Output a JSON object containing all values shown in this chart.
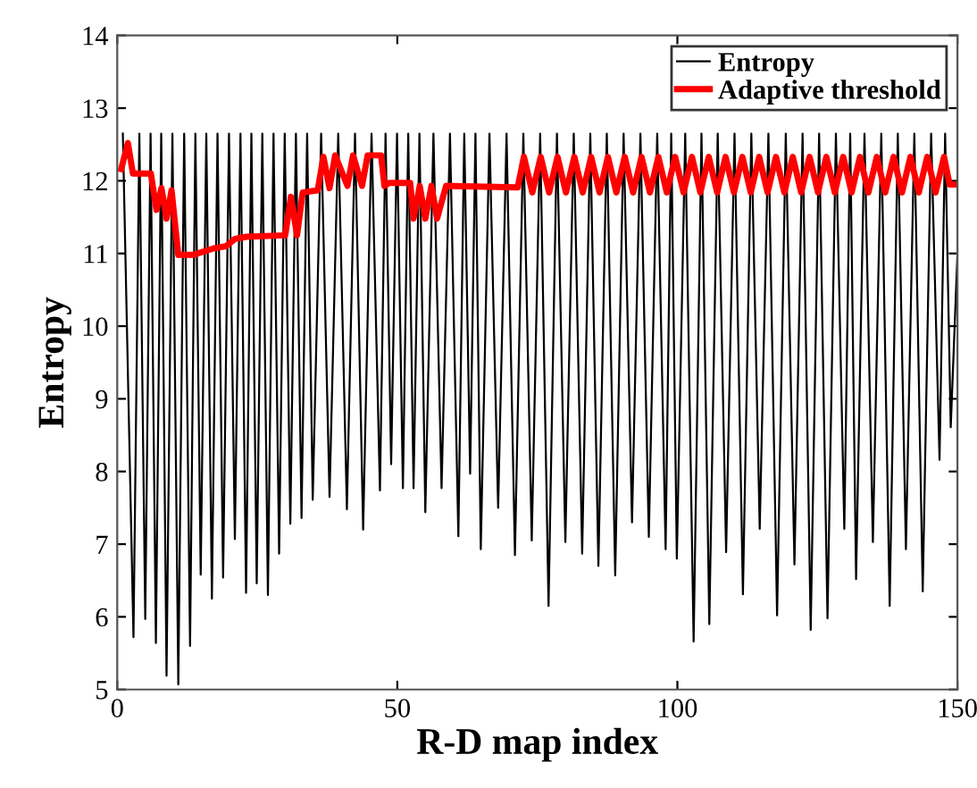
{
  "chart_data": {
    "type": "line",
    "xlabel": "R-D map index",
    "ylabel": "Entropy",
    "xlim": [
      0,
      150
    ],
    "xticks": [
      0,
      50,
      100,
      150
    ],
    "ylim": [
      5,
      14
    ],
    "yticks": [
      5,
      6,
      7,
      8,
      9,
      10,
      11,
      12,
      13,
      14
    ],
    "grid": false,
    "legend": "top right",
    "marker": "none",
    "line_style": "solid",
    "series": [
      {
        "name": "Entropy",
        "color": "#000000",
        "x": [
          1.0,
          2.9,
          3.95,
          5.0,
          5.95,
          6.9,
          7.85,
          8.8,
          9.85,
          10.9,
          11.95,
          13.0,
          13.95,
          14.9,
          15.9,
          16.9,
          17.9,
          18.9,
          19.95,
          21.0,
          22.0,
          23.0,
          23.95,
          24.9,
          25.9,
          26.9,
          27.9,
          28.9,
          29.9,
          30.9,
          31.9,
          32.9,
          33.9,
          34.9,
          36.4,
          37.9,
          39.45,
          41.0,
          42.45,
          43.9,
          45.4,
          46.9,
          47.9,
          48.9,
          49.95,
          51.0,
          51.95,
          52.9,
          53.95,
          55.0,
          56.45,
          57.9,
          59.4,
          60.9,
          61.95,
          63.0,
          63.95,
          64.9,
          66.45,
          68.0,
          69.5,
          71.0,
          72.5,
          74.0,
          75.5,
          77.0,
          78.5,
          80.0,
          81.5,
          83.0,
          84.45,
          85.9,
          87.4,
          88.9,
          90.4,
          91.9,
          93.4,
          94.9,
          96.4,
          97.9,
          98.9,
          99.9,
          101.4,
          102.9,
          104.3,
          105.7,
          107.2,
          108.7,
          110.2,
          111.7,
          113.2,
          114.7,
          116.25,
          117.8,
          119.35,
          120.9,
          122.35,
          123.8,
          125.3,
          126.8,
          128.3,
          129.8,
          130.85,
          131.9,
          133.4,
          134.9,
          136.4,
          137.9,
          139.35,
          140.8,
          142.3,
          143.8,
          145.3,
          146.8,
          147.8,
          148.8,
          150
        ],
        "values": [
          12.65,
          5.72,
          12.65,
          5.97,
          12.65,
          5.64,
          12.65,
          5.19,
          12.65,
          5.07,
          12.65,
          5.6,
          12.65,
          6.58,
          12.65,
          6.25,
          12.65,
          6.54,
          12.65,
          7.07,
          12.65,
          6.33,
          12.65,
          6.46,
          12.65,
          6.3,
          12.65,
          6.87,
          12.65,
          7.28,
          12.65,
          7.36,
          12.65,
          7.61,
          12.65,
          7.65,
          12.65,
          7.48,
          12.65,
          7.2,
          12.65,
          7.74,
          12.65,
          8.1,
          12.65,
          7.77,
          12.65,
          7.77,
          12.65,
          7.44,
          12.65,
          7.77,
          12.65,
          7.11,
          12.65,
          7.97,
          12.65,
          6.93,
          12.65,
          7.5,
          12.65,
          6.85,
          12.65,
          7.05,
          12.65,
          6.15,
          12.65,
          7.03,
          12.65,
          6.87,
          12.65,
          6.7,
          12.65,
          6.57,
          12.65,
          7.3,
          12.65,
          7.1,
          12.65,
          6.93,
          12.65,
          6.8,
          12.65,
          5.66,
          12.65,
          5.9,
          12.65,
          6.89,
          12.65,
          6.31,
          12.65,
          7.21,
          12.65,
          6.02,
          12.65,
          6.72,
          12.65,
          5.82,
          12.65,
          5.98,
          12.65,
          7.21,
          12.65,
          6.52,
          12.65,
          7.03,
          12.65,
          6.15,
          12.65,
          6.93,
          12.65,
          6.35,
          12.65,
          8.16,
          12.65,
          8.61,
          11.0
        ]
      },
      {
        "name": "Adaptive threshold",
        "color": "#ff0000",
        "x": [
          0.7,
          1.9,
          2.8,
          6.0,
          7.0,
          7.9,
          8.8,
          9.7,
          10.9,
          13.5,
          17.2,
          19.4,
          21.0,
          23.1,
          30.0,
          31.0,
          32.1,
          33.1,
          35.8,
          36.8,
          37.9,
          38.9,
          41.1,
          42.1,
          43.7,
          44.7,
          47.1,
          47.7,
          48.5,
          51.1,
          52.3,
          52.9,
          54.0,
          55.0,
          56.1,
          57.1,
          58.7,
          71.5,
          72.6,
          74.1,
          75.6,
          77.1,
          78.6,
          80.1,
          81.6,
          83.1,
          84.6,
          86.1,
          87.6,
          89.1,
          90.6,
          92.1,
          93.6,
          95.1,
          96.6,
          98.1,
          99.6,
          101.1,
          102.6,
          104.1,
          105.6,
          107.1,
          108.6,
          110.1,
          111.6,
          113.1,
          114.6,
          116.1,
          117.6,
          119.1,
          120.6,
          122.1,
          123.6,
          125.1,
          126.6,
          128.1,
          129.6,
          131.1,
          132.6,
          134.1,
          135.6,
          137.1,
          138.6,
          140.1,
          141.6,
          143.1,
          144.6,
          146.1,
          147.6,
          148.6,
          150
        ],
        "values": [
          12.16,
          12.52,
          12.1,
          12.1,
          11.6,
          11.9,
          11.48,
          11.87,
          10.98,
          10.98,
          11.07,
          11.1,
          11.2,
          11.23,
          11.25,
          11.78,
          11.25,
          11.84,
          11.87,
          12.33,
          11.9,
          12.35,
          11.93,
          12.35,
          11.93,
          12.35,
          12.35,
          11.93,
          11.97,
          11.97,
          11.97,
          11.48,
          11.93,
          11.48,
          11.93,
          11.48,
          11.93,
          11.91,
          12.33,
          11.84,
          12.33,
          11.84,
          12.33,
          11.84,
          12.33,
          11.84,
          12.33,
          11.84,
          12.33,
          11.84,
          12.33,
          11.84,
          12.33,
          11.84,
          12.33,
          11.84,
          12.33,
          11.84,
          12.33,
          11.84,
          12.33,
          11.84,
          12.33,
          11.84,
          12.33,
          11.84,
          12.33,
          11.84,
          12.33,
          11.84,
          12.33,
          11.84,
          12.33,
          11.84,
          12.33,
          11.84,
          12.33,
          11.84,
          12.33,
          11.84,
          12.33,
          11.84,
          12.33,
          11.84,
          12.33,
          11.84,
          12.33,
          11.84,
          12.33,
          11.95,
          11.95
        ]
      }
    ]
  }
}
